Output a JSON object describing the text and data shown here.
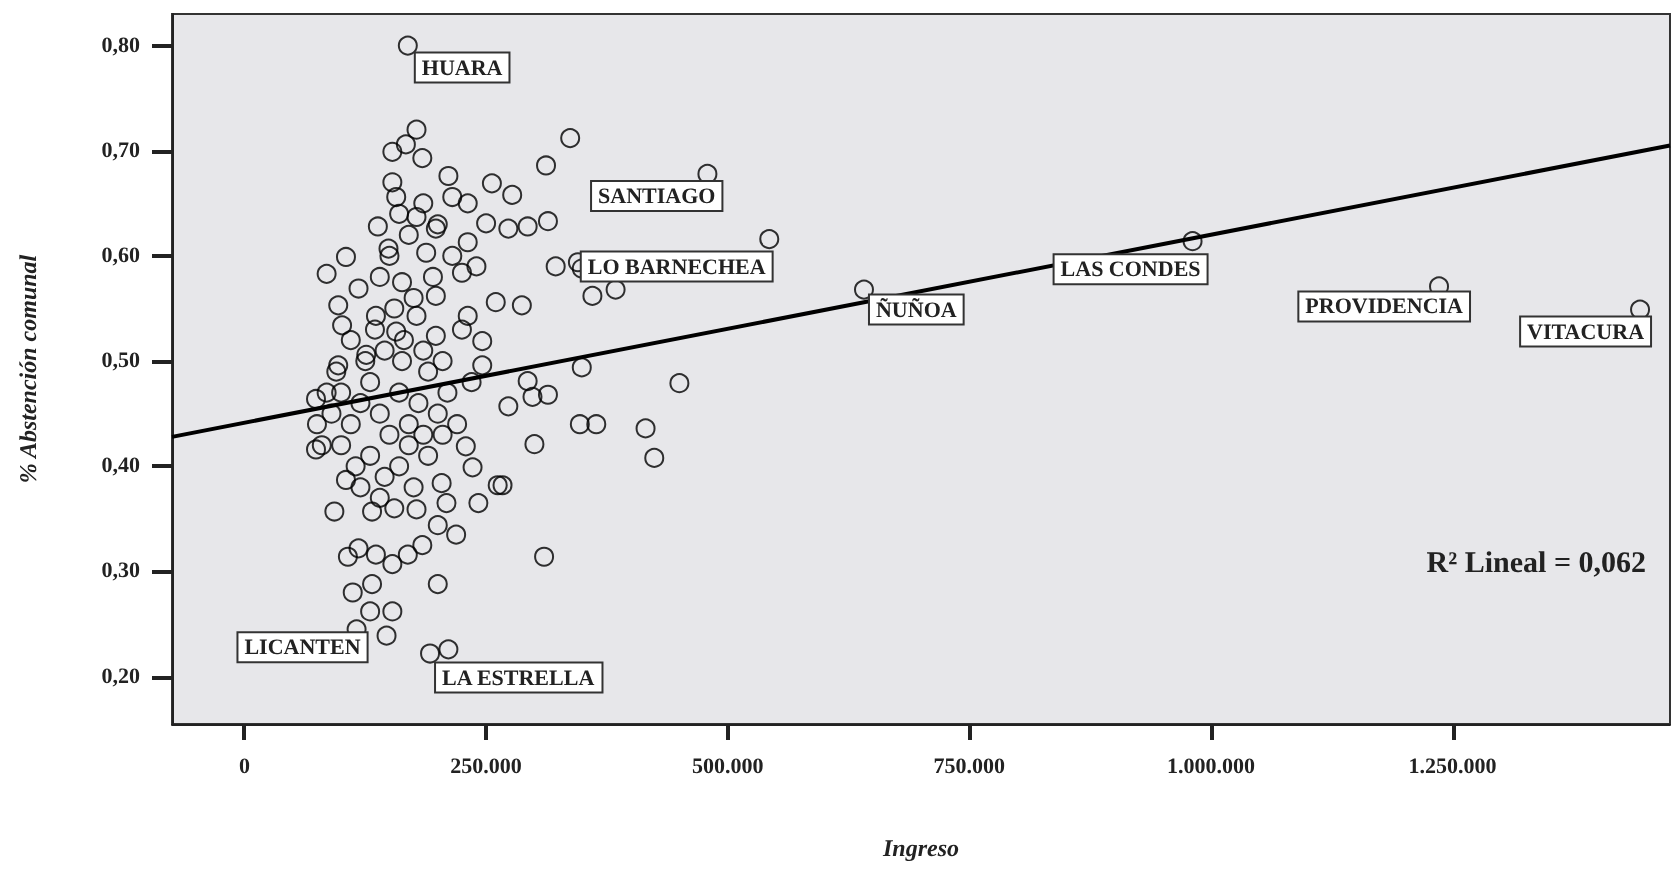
{
  "chart_data": {
    "type": "scatter",
    "xlabel": "Ingreso",
    "ylabel": "% Abstención comunal",
    "xlim": [
      -75000,
      1475000
    ],
    "ylim": [
      0.155,
      0.83
    ],
    "xticks": [
      {
        "value": 0,
        "label": "0"
      },
      {
        "value": 250000,
        "label": "250.000"
      },
      {
        "value": 500000,
        "label": "500.000"
      },
      {
        "value": 750000,
        "label": "750.000"
      },
      {
        "value": 1000000,
        "label": "1.000.000"
      },
      {
        "value": 1250000,
        "label": "1.250.000"
      }
    ],
    "yticks": [
      {
        "value": 0.2,
        "label": "0,20"
      },
      {
        "value": 0.3,
        "label": "0,30"
      },
      {
        "value": 0.4,
        "label": "0,40"
      },
      {
        "value": 0.5,
        "label": "0,50"
      },
      {
        "value": 0.6,
        "label": "0,60"
      },
      {
        "value": 0.7,
        "label": "0,70"
      },
      {
        "value": 0.8,
        "label": "0,80"
      }
    ],
    "marker": "circle",
    "series": [
      {
        "color": "#000000",
        "x": [
          169000,
          479000,
          349000,
          543000,
          641000,
          981000,
          1236000,
          1444000,
          116000,
          192000,
          211000,
          178000,
          153000,
          167000,
          184000,
          337000,
          312000,
          211000,
          256000,
          277000,
          153000,
          157000,
          215000,
          231000,
          314000,
          293000,
          273000,
          178000,
          138000,
          198000,
          250000,
          105000,
          85000,
          149000,
          188000,
          231000,
          322000,
          345000,
          360000,
          384000,
          225000,
          240000,
          118000,
          163000,
          198000,
          97000,
          136000,
          178000,
          231000,
          260000,
          287000,
          101000,
          157000,
          198000,
          246000,
          97000,
          126000,
          163000,
          349000,
          246000,
          74000,
          293000,
          273000,
          298000,
          450000,
          314000,
          347000,
          364000,
          415000,
          424000,
          300000,
          310000,
          267000,
          74000,
          229000,
          236000,
          204000,
          262000,
          105000,
          93000,
          132000,
          178000,
          209000,
          242000,
          200000,
          219000,
          107000,
          118000,
          136000,
          153000,
          169000,
          184000,
          112000,
          132000,
          200000,
          130000,
          153000,
          147000,
          90000,
          100000,
          110000,
          120000,
          130000,
          140000,
          150000,
          160000,
          170000,
          180000,
          190000,
          200000,
          210000,
          220000,
          100000,
          115000,
          130000,
          145000,
          160000,
          175000,
          190000,
          205000,
          120000,
          140000,
          155000,
          170000,
          185000,
          125000,
          145000,
          165000,
          185000,
          205000,
          95000,
          110000,
          135000,
          155000,
          175000,
          195000,
          215000,
          150000,
          170000,
          185000,
          160000,
          200000,
          140000,
          80000,
          75000,
          85000,
          225000,
          235000
        ],
        "values": [
          0.8,
          0.678,
          0.588,
          0.616,
          0.568,
          0.614,
          0.571,
          0.549,
          0.245,
          0.222,
          0.226,
          0.72,
          0.699,
          0.706,
          0.693,
          0.712,
          0.686,
          0.676,
          0.669,
          0.658,
          0.67,
          0.656,
          0.656,
          0.65,
          0.633,
          0.628,
          0.626,
          0.637,
          0.628,
          0.626,
          0.631,
          0.599,
          0.583,
          0.607,
          0.603,
          0.613,
          0.59,
          0.594,
          0.562,
          0.568,
          0.584,
          0.59,
          0.569,
          0.575,
          0.562,
          0.553,
          0.543,
          0.543,
          0.543,
          0.556,
          0.553,
          0.534,
          0.528,
          0.524,
          0.519,
          0.496,
          0.506,
          0.5,
          0.494,
          0.496,
          0.464,
          0.481,
          0.457,
          0.466,
          0.479,
          0.468,
          0.44,
          0.44,
          0.436,
          0.408,
          0.421,
          0.314,
          0.382,
          0.416,
          0.419,
          0.399,
          0.384,
          0.382,
          0.387,
          0.357,
          0.357,
          0.359,
          0.365,
          0.365,
          0.344,
          0.335,
          0.314,
          0.322,
          0.316,
          0.307,
          0.316,
          0.325,
          0.28,
          0.288,
          0.288,
          0.262,
          0.262,
          0.239,
          0.45,
          0.47,
          0.44,
          0.46,
          0.48,
          0.45,
          0.43,
          0.47,
          0.44,
          0.46,
          0.49,
          0.45,
          0.47,
          0.44,
          0.42,
          0.4,
          0.41,
          0.39,
          0.4,
          0.38,
          0.41,
          0.43,
          0.38,
          0.37,
          0.36,
          0.42,
          0.43,
          0.5,
          0.51,
          0.52,
          0.51,
          0.5,
          0.49,
          0.52,
          0.53,
          0.55,
          0.56,
          0.58,
          0.6,
          0.6,
          0.62,
          0.65,
          0.64,
          0.63,
          0.58,
          0.42,
          0.44,
          0.47,
          0.53,
          0.48
        ]
      },
      {
        "type": "line",
        "color": "#000000",
        "marker": "none",
        "x": [
          -75000,
          1475000
        ],
        "values": [
          0.428,
          0.705
        ]
      }
    ],
    "annotations": [
      {
        "text": "HUARA",
        "x": 169000,
        "y": 0.8
      },
      {
        "text": "SANTIAGO",
        "x": 479000,
        "y": 0.678
      },
      {
        "text": "LO BARNECHEA",
        "x": 349000,
        "y": 0.588
      },
      {
        "text": "ÑUÑOA",
        "x": 641000,
        "y": 0.568
      },
      {
        "text": "LAS CONDES",
        "x": 981000,
        "y": 0.614
      },
      {
        "text": "PROVIDENCIA",
        "x": 1236000,
        "y": 0.571
      },
      {
        "text": "VITACURA",
        "x": 1444000,
        "y": 0.549
      },
      {
        "text": "LICANTEN",
        "x": 116000,
        "y": 0.245
      },
      {
        "text": "LA ESTRELLA",
        "x": 192000,
        "y": 0.222
      },
      "R² Lineal = 0,062"
    ]
  }
}
